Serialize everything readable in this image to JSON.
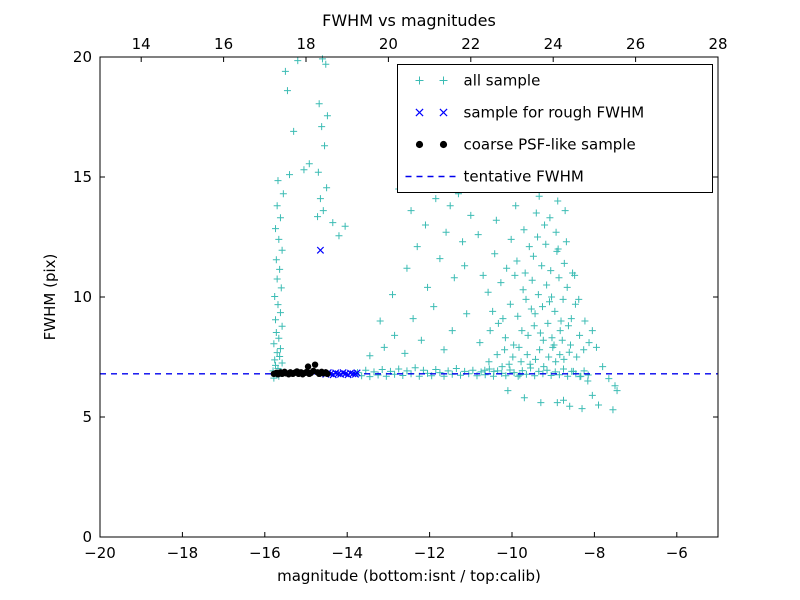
{
  "chart_data": {
    "type": "scatter",
    "title": "FWHM vs magnitudes",
    "xlabel": "magnitude (bottom:isnt / top:calib)",
    "ylabel": "FWHM (pix)",
    "xlim": [
      -20,
      -5
    ],
    "ylim": [
      0,
      20
    ],
    "x_ticks": [
      -20,
      -18,
      -16,
      -14,
      -12,
      -10,
      -8,
      -6
    ],
    "y_ticks": [
      0,
      5,
      10,
      15,
      20
    ],
    "top_axis": {
      "lim": [
        13,
        28
      ],
      "ticks": [
        14,
        16,
        18,
        20,
        22,
        24,
        26,
        28
      ]
    },
    "grid": false,
    "legend_position": "upper right",
    "colors": {
      "all_sample": "#3cbcb4",
      "rough_fwhm": "#0000ff",
      "coarse_psf": "#000000",
      "tentative_line": "#0000ee"
    },
    "series": [
      {
        "name": "all sample",
        "marker": "plus",
        "color": "#3cbcb4",
        "points": [
          [
            -15.78,
            6.62
          ],
          [
            -15.66,
            6.7
          ],
          [
            -15.72,
            6.78
          ],
          [
            -15.6,
            6.85
          ],
          [
            -15.8,
            6.92
          ],
          [
            -15.68,
            7.02
          ],
          [
            -15.74,
            7.15
          ],
          [
            -15.58,
            7.25
          ],
          [
            -15.76,
            7.38
          ],
          [
            -15.64,
            7.52
          ],
          [
            -15.7,
            7.68
          ],
          [
            -15.62,
            7.85
          ],
          [
            -15.78,
            8.05
          ],
          [
            -15.66,
            8.28
          ],
          [
            -15.72,
            8.52
          ],
          [
            -15.58,
            8.78
          ],
          [
            -15.74,
            9.05
          ],
          [
            -15.62,
            9.35
          ],
          [
            -15.68,
            9.68
          ],
          [
            -15.76,
            10.02
          ],
          [
            -15.6,
            10.38
          ],
          [
            -15.7,
            10.75
          ],
          [
            -15.64,
            11.15
          ],
          [
            -15.72,
            11.55
          ],
          [
            -15.58,
            11.95
          ],
          [
            -15.66,
            12.4
          ],
          [
            -15.74,
            12.85
          ],
          [
            -15.62,
            13.3
          ],
          [
            -15.7,
            13.8
          ],
          [
            -15.55,
            14.3
          ],
          [
            -15.68,
            14.85
          ],
          [
            -15.4,
            15.1
          ],
          [
            -15.05,
            15.3
          ],
          [
            -14.92,
            15.55
          ],
          [
            -15.3,
            16.9
          ],
          [
            -15.5,
            19.4
          ],
          [
            -15.2,
            19.85
          ],
          [
            -15.45,
            18.6
          ],
          [
            -14.72,
            13.35
          ],
          [
            -14.58,
            13.6
          ],
          [
            -14.65,
            14.1
          ],
          [
            -14.5,
            14.55
          ],
          [
            -14.7,
            15.2
          ],
          [
            -14.55,
            16.3
          ],
          [
            -14.62,
            17.1
          ],
          [
            -14.48,
            17.55
          ],
          [
            -14.68,
            18.05
          ],
          [
            -14.52,
            19.7
          ],
          [
            -14.6,
            19.92
          ],
          [
            -14.35,
            13.1
          ],
          [
            -14.2,
            12.55
          ],
          [
            -14.05,
            12.95
          ],
          [
            -13.45,
            7.55
          ],
          [
            -13.1,
            7.9
          ],
          [
            -12.85,
            8.4
          ],
          [
            -12.6,
            7.65
          ],
          [
            -12.4,
            9.1
          ],
          [
            -12.2,
            8.2
          ],
          [
            -12.05,
            10.4
          ],
          [
            -11.9,
            9.6
          ],
          [
            -12.55,
            11.2
          ],
          [
            -12.3,
            12.1
          ],
          [
            -12.1,
            13.0
          ],
          [
            -11.75,
            11.6
          ],
          [
            -11.6,
            12.7
          ],
          [
            -11.5,
            13.8
          ],
          [
            -11.4,
            10.8
          ],
          [
            -11.3,
            14.3
          ],
          [
            -11.2,
            12.3
          ],
          [
            -11.1,
            9.3
          ],
          [
            -11.0,
            13.4
          ],
          [
            -12.75,
            14.5
          ],
          [
            -11.85,
            14.1
          ],
          [
            -12.9,
            10.1
          ],
          [
            -13.2,
            9.0
          ],
          [
            -11.45,
            8.6
          ],
          [
            -11.15,
            11.3
          ],
          [
            -12.45,
            13.6
          ],
          [
            -11.65,
            7.8
          ],
          [
            -10.95,
            14.6
          ],
          [
            -10.78,
            8.1
          ],
          [
            -10.82,
            12.6
          ],
          [
            -10.7,
            10.9
          ],
          [
            -10.66,
            6.95
          ],
          [
            -10.56,
            7.3
          ],
          [
            -10.53,
            8.6
          ],
          [
            -10.58,
            10.2
          ],
          [
            -10.44,
            6.9
          ],
          [
            -10.47,
            9.4
          ],
          [
            -10.42,
            11.8
          ],
          [
            -10.36,
            7.6
          ],
          [
            -10.33,
            8.9
          ],
          [
            -10.38,
            13.2
          ],
          [
            -10.24,
            7.1
          ],
          [
            -10.27,
            10.6
          ],
          [
            -10.22,
            9.1
          ],
          [
            -10.16,
            8.3
          ],
          [
            -10.13,
            11.2
          ],
          [
            -10.18,
            7.8
          ],
          [
            -10.04,
            9.7
          ],
          [
            -10.07,
            7.2
          ],
          [
            -10.02,
            12.4
          ],
          [
            -9.96,
            8.0
          ],
          [
            -9.93,
            10.9
          ],
          [
            -9.98,
            7.5
          ],
          [
            -9.91,
            13.8
          ],
          [
            -9.86,
            9.2
          ],
          [
            -9.83,
            7.9
          ],
          [
            -9.88,
            11.5
          ],
          [
            -9.81,
            6.75
          ],
          [
            -9.76,
            8.6
          ],
          [
            -9.73,
            10.3
          ],
          [
            -9.78,
            7.3
          ],
          [
            -9.71,
            12.8
          ],
          [
            -9.66,
            9.9
          ],
          [
            -9.63,
            7.6
          ],
          [
            -9.68,
            11.0
          ],
          [
            -9.61,
            8.4
          ],
          [
            -9.56,
            7.2
          ],
          [
            -9.53,
            9.5
          ],
          [
            -9.58,
            12.1
          ],
          [
            -9.51,
            10.7
          ],
          [
            -9.46,
            8.8
          ],
          [
            -9.43,
            7.4
          ],
          [
            -9.48,
            11.7
          ],
          [
            -9.41,
            13.5
          ],
          [
            -9.44,
            9.3
          ],
          [
            -9.36,
            10.1
          ],
          [
            -9.33,
            7.8
          ],
          [
            -9.38,
            12.5
          ],
          [
            -9.31,
            8.5
          ],
          [
            -9.34,
            14.2
          ],
          [
            -9.26,
            9.6
          ],
          [
            -9.23,
            7.1
          ],
          [
            -9.28,
            11.3
          ],
          [
            -9.21,
            13.0
          ],
          [
            -9.24,
            8.2
          ],
          [
            -9.19,
            15.0
          ],
          [
            -9.16,
            10.5
          ],
          [
            -9.13,
            8.9
          ],
          [
            -9.18,
            12.2
          ],
          [
            -9.11,
            7.5
          ],
          [
            -9.14,
            14.6
          ],
          [
            -9.09,
            9.8
          ],
          [
            -9.06,
            11.1
          ],
          [
            -9.03,
            8.3
          ],
          [
            -9.08,
            13.3
          ],
          [
            -9.01,
            7.9
          ],
          [
            -9.04,
            10.0
          ],
          [
            -8.99,
            15.25
          ],
          [
            -8.96,
            9.4
          ],
          [
            -8.93,
            12.7
          ],
          [
            -8.98,
            8.0
          ],
          [
            -8.91,
            11.9
          ],
          [
            -8.94,
            7.3
          ],
          [
            -8.89,
            14.0
          ],
          [
            -8.86,
            10.8
          ],
          [
            -8.83,
            8.6
          ],
          [
            -8.88,
            12.0
          ],
          [
            -8.81,
            9.0
          ],
          [
            -8.84,
            7.6
          ],
          [
            -8.76,
            9.9
          ],
          [
            -8.73,
            11.4
          ],
          [
            -8.78,
            8.2
          ],
          [
            -8.71,
            13.6
          ],
          [
            -8.74,
            7.4
          ],
          [
            -8.66,
            10.4
          ],
          [
            -8.63,
            8.8
          ],
          [
            -8.68,
            12.3
          ],
          [
            -8.61,
            7.7
          ],
          [
            -8.56,
            9.1
          ],
          [
            -8.53,
            11.0
          ],
          [
            -8.58,
            8.0
          ],
          [
            -8.51,
            6.9
          ],
          [
            -8.46,
            9.7
          ],
          [
            -8.43,
            7.5
          ],
          [
            -8.48,
            10.9
          ],
          [
            -8.36,
            8.4
          ],
          [
            -8.33,
            6.7
          ],
          [
            -8.38,
            9.9
          ],
          [
            -8.26,
            7.8
          ],
          [
            -8.23,
            9.0
          ],
          [
            -8.16,
            6.5
          ],
          [
            -8.13,
            8.1
          ],
          [
            -9.7,
            5.8
          ],
          [
            -9.3,
            5.6
          ],
          [
            -10.1,
            6.1
          ],
          [
            -8.75,
            5.7
          ],
          [
            -8.9,
            5.6
          ],
          [
            -8.6,
            5.45
          ],
          [
            -8.3,
            5.35
          ],
          [
            -7.9,
            5.5
          ],
          [
            -7.55,
            5.3
          ],
          [
            -7.5,
            6.3
          ],
          [
            -8.05,
            5.9
          ],
          [
            -7.95,
            7.9
          ],
          [
            -7.8,
            7.1
          ],
          [
            -7.65,
            6.6
          ],
          [
            -7.45,
            6.1
          ],
          [
            -8.05,
            8.6
          ],
          [
            -13.75,
            6.85
          ],
          [
            -13.65,
            6.72
          ],
          [
            -13.55,
            6.95
          ],
          [
            -13.45,
            6.68
          ],
          [
            -13.35,
            6.88
          ],
          [
            -13.25,
            6.75
          ],
          [
            -13.15,
            6.98
          ],
          [
            -13.05,
            6.7
          ],
          [
            -12.95,
            6.9
          ],
          [
            -12.85,
            6.78
          ],
          [
            -12.75,
            7.0
          ],
          [
            -12.65,
            6.73
          ],
          [
            -12.55,
            6.92
          ],
          [
            -12.45,
            6.8
          ],
          [
            -12.35,
            7.05
          ],
          [
            -12.25,
            6.7
          ],
          [
            -12.15,
            6.95
          ],
          [
            -12.05,
            6.82
          ],
          [
            -11.95,
            6.72
          ],
          [
            -11.85,
            6.98
          ],
          [
            -11.75,
            6.85
          ],
          [
            -11.65,
            6.7
          ],
          [
            -11.55,
            6.92
          ],
          [
            -11.45,
            6.78
          ],
          [
            -11.35,
            7.02
          ],
          [
            -11.25,
            6.74
          ],
          [
            -11.15,
            6.9
          ],
          [
            -11.05,
            6.8
          ],
          [
            -10.95,
            6.95
          ],
          [
            -10.85,
            6.72
          ],
          [
            -10.75,
            6.88
          ],
          [
            -10.65,
            6.76
          ],
          [
            -10.55,
            7.0
          ],
          [
            -10.45,
            6.7
          ],
          [
            -10.35,
            6.92
          ],
          [
            -10.25,
            6.82
          ],
          [
            -10.15,
            6.72
          ],
          [
            -10.05,
            6.96
          ],
          [
            -9.95,
            6.85
          ],
          [
            -9.85,
            6.7
          ],
          [
            -9.75,
            6.93
          ],
          [
            -9.65,
            6.78
          ],
          [
            -9.55,
            7.04
          ],
          [
            -9.45,
            6.72
          ],
          [
            -9.35,
            6.9
          ],
          [
            -9.25,
            6.8
          ],
          [
            -9.15,
            6.95
          ],
          [
            -9.05,
            6.73
          ],
          [
            -8.95,
            6.88
          ],
          [
            -8.85,
            6.76
          ],
          [
            -8.75,
            7.0
          ],
          [
            -8.65,
            6.7
          ],
          [
            -8.55,
            6.9
          ],
          [
            -8.45,
            6.8
          ],
          [
            -8.35,
            6.68
          ],
          [
            -8.25,
            6.92
          ],
          [
            -8.15,
            6.75
          ]
        ]
      },
      {
        "name": "sample for rough FWHM",
        "marker": "x",
        "color": "#0000ff",
        "points": [
          [
            -14.58,
            6.82
          ],
          [
            -14.52,
            6.78
          ],
          [
            -14.46,
            6.85
          ],
          [
            -14.4,
            6.8
          ],
          [
            -14.34,
            6.76
          ],
          [
            -14.28,
            6.84
          ],
          [
            -14.22,
            6.8
          ],
          [
            -14.16,
            6.78
          ],
          [
            -14.1,
            6.85
          ],
          [
            -14.04,
            6.8
          ],
          [
            -13.98,
            6.76
          ],
          [
            -13.92,
            6.83
          ],
          [
            -13.86,
            6.8
          ],
          [
            -13.8,
            6.78
          ],
          [
            -13.76,
            6.84
          ],
          [
            -14.65,
            11.95
          ]
        ]
      },
      {
        "name": "coarse PSF-like sample",
        "marker": "dot",
        "color": "#000000",
        "points": [
          [
            -15.78,
            6.8
          ],
          [
            -15.72,
            6.84
          ],
          [
            -15.68,
            6.78
          ],
          [
            -15.62,
            6.86
          ],
          [
            -15.58,
            6.8
          ],
          [
            -15.52,
            6.88
          ],
          [
            -15.48,
            6.82
          ],
          [
            -15.42,
            6.78
          ],
          [
            -15.38,
            6.86
          ],
          [
            -15.32,
            6.8
          ],
          [
            -15.28,
            6.84
          ],
          [
            -15.22,
            6.9
          ],
          [
            -15.18,
            6.8
          ],
          [
            -15.12,
            6.86
          ],
          [
            -15.08,
            6.78
          ],
          [
            -15.02,
            6.84
          ],
          [
            -14.98,
            6.88
          ],
          [
            -14.92,
            6.8
          ],
          [
            -14.88,
            6.84
          ],
          [
            -14.82,
            6.92
          ],
          [
            -14.78,
            7.18
          ],
          [
            -14.72,
            6.86
          ],
          [
            -14.68,
            6.8
          ],
          [
            -14.62,
            6.88
          ],
          [
            -14.58,
            6.82
          ],
          [
            -14.52,
            6.86
          ],
          [
            -14.48,
            6.8
          ],
          [
            -14.95,
            7.1
          ]
        ]
      },
      {
        "name": "tentative FWHM",
        "marker": "dashed-line",
        "color": "#0000ee",
        "y": 6.8
      }
    ]
  }
}
